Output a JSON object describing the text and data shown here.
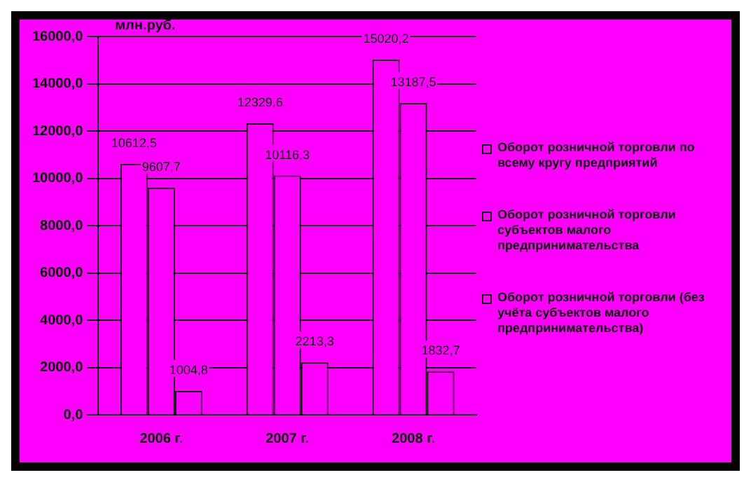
{
  "chart_data": {
    "type": "bar",
    "ylabel": "млн.руб.",
    "categories": [
      "2006 г.",
      "2007 г.",
      "2008 г."
    ],
    "series": [
      {
        "name": "Оборот розничной торговли по всему кругу предприятий",
        "color": "#ff00ff",
        "values": [
          10612.5,
          12329.6,
          15020.2
        ],
        "value_labels": [
          "10612,5",
          "12329,6",
          "15020,2"
        ]
      },
      {
        "name": "Оборот розничной торговли субъектов малого предпринимательства",
        "color": "#ff00ff",
        "values": [
          9607.7,
          10116.3,
          13187.5
        ],
        "value_labels": [
          "9607,7",
          "10116,3",
          "13187,5"
        ]
      },
      {
        "name": "Оборот розничной торговли (без учёта субъектов малого предпринимательства)",
        "color": "#ff00ff",
        "values": [
          1004.8,
          2213.3,
          1832.7
        ],
        "value_labels": [
          "1004,8",
          "2213,3",
          "1832,7"
        ]
      }
    ],
    "ylim": [
      0,
      16000
    ],
    "yticks": [
      {
        "value": 0,
        "label": "0,0"
      },
      {
        "value": 2000,
        "label": "2000,0"
      },
      {
        "value": 4000,
        "label": "4000,0"
      },
      {
        "value": 6000,
        "label": "6000,0"
      },
      {
        "value": 8000,
        "label": "8000,0"
      },
      {
        "value": 10000,
        "label": "10000,0"
      },
      {
        "value": 12000,
        "label": "12000,0"
      },
      {
        "value": 14000,
        "label": "14000,0"
      },
      {
        "value": 16000,
        "label": "16000,0"
      }
    ],
    "grid": "y",
    "legend": "right"
  }
}
